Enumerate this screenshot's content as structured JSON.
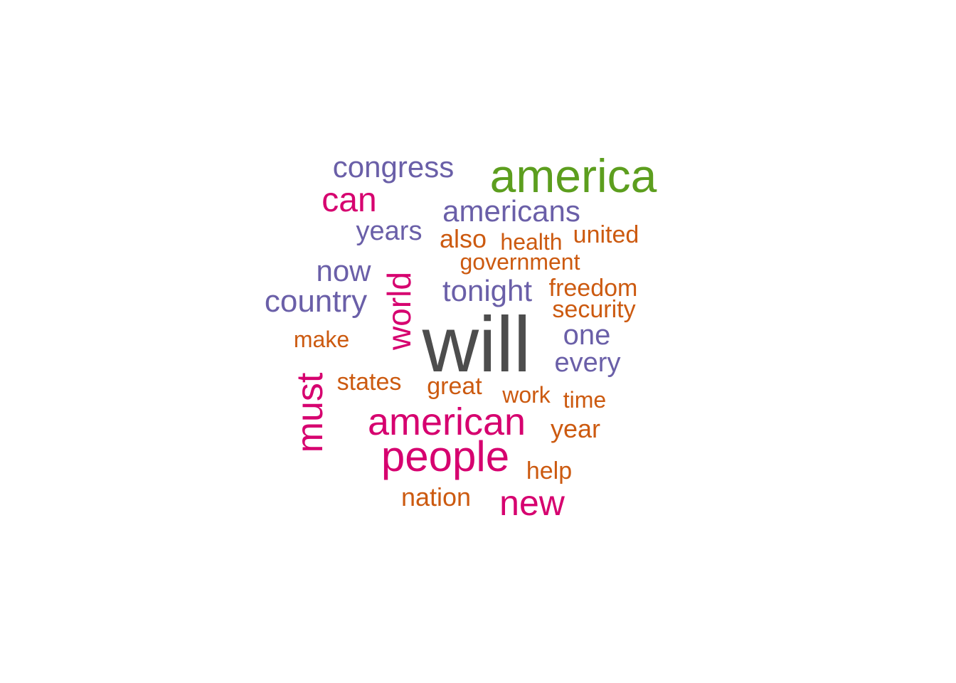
{
  "palette": {
    "dark_gray": "#4d4d4d",
    "green": "#5c9e1e",
    "magenta": "#d6006f",
    "purple": "#6a5fa8",
    "orange": "#cc5a10"
  },
  "words": [
    {
      "text": "will",
      "color": "dark_gray",
      "rotated": false
    },
    {
      "text": "america",
      "color": "green",
      "rotated": false
    },
    {
      "text": "american",
      "color": "magenta",
      "rotated": false
    },
    {
      "text": "people",
      "color": "magenta",
      "rotated": false
    },
    {
      "text": "must",
      "color": "magenta",
      "rotated": true
    },
    {
      "text": "can",
      "color": "magenta",
      "rotated": false
    },
    {
      "text": "new",
      "color": "magenta",
      "rotated": false
    },
    {
      "text": "world",
      "color": "magenta",
      "rotated": true
    },
    {
      "text": "congress",
      "color": "purple",
      "rotated": false
    },
    {
      "text": "americans",
      "color": "purple",
      "rotated": false
    },
    {
      "text": "country",
      "color": "purple",
      "rotated": false
    },
    {
      "text": "tonight",
      "color": "purple",
      "rotated": false
    },
    {
      "text": "now",
      "color": "purple",
      "rotated": false
    },
    {
      "text": "years",
      "color": "purple",
      "rotated": false
    },
    {
      "text": "one",
      "color": "purple",
      "rotated": false
    },
    {
      "text": "every",
      "color": "purple",
      "rotated": false
    },
    {
      "text": "also",
      "color": "orange",
      "rotated": false
    },
    {
      "text": "health",
      "color": "orange",
      "rotated": false
    },
    {
      "text": "united",
      "color": "orange",
      "rotated": false
    },
    {
      "text": "government",
      "color": "orange",
      "rotated": false
    },
    {
      "text": "freedom",
      "color": "orange",
      "rotated": false
    },
    {
      "text": "security",
      "color": "orange",
      "rotated": false
    },
    {
      "text": "make",
      "color": "orange",
      "rotated": false
    },
    {
      "text": "states",
      "color": "orange",
      "rotated": false
    },
    {
      "text": "great",
      "color": "orange",
      "rotated": false
    },
    {
      "text": "work",
      "color": "orange",
      "rotated": false
    },
    {
      "text": "time",
      "color": "orange",
      "rotated": false
    },
    {
      "text": "year",
      "color": "orange",
      "rotated": false
    },
    {
      "text": "help",
      "color": "orange",
      "rotated": false
    },
    {
      "text": "nation",
      "color": "orange",
      "rotated": false
    }
  ]
}
